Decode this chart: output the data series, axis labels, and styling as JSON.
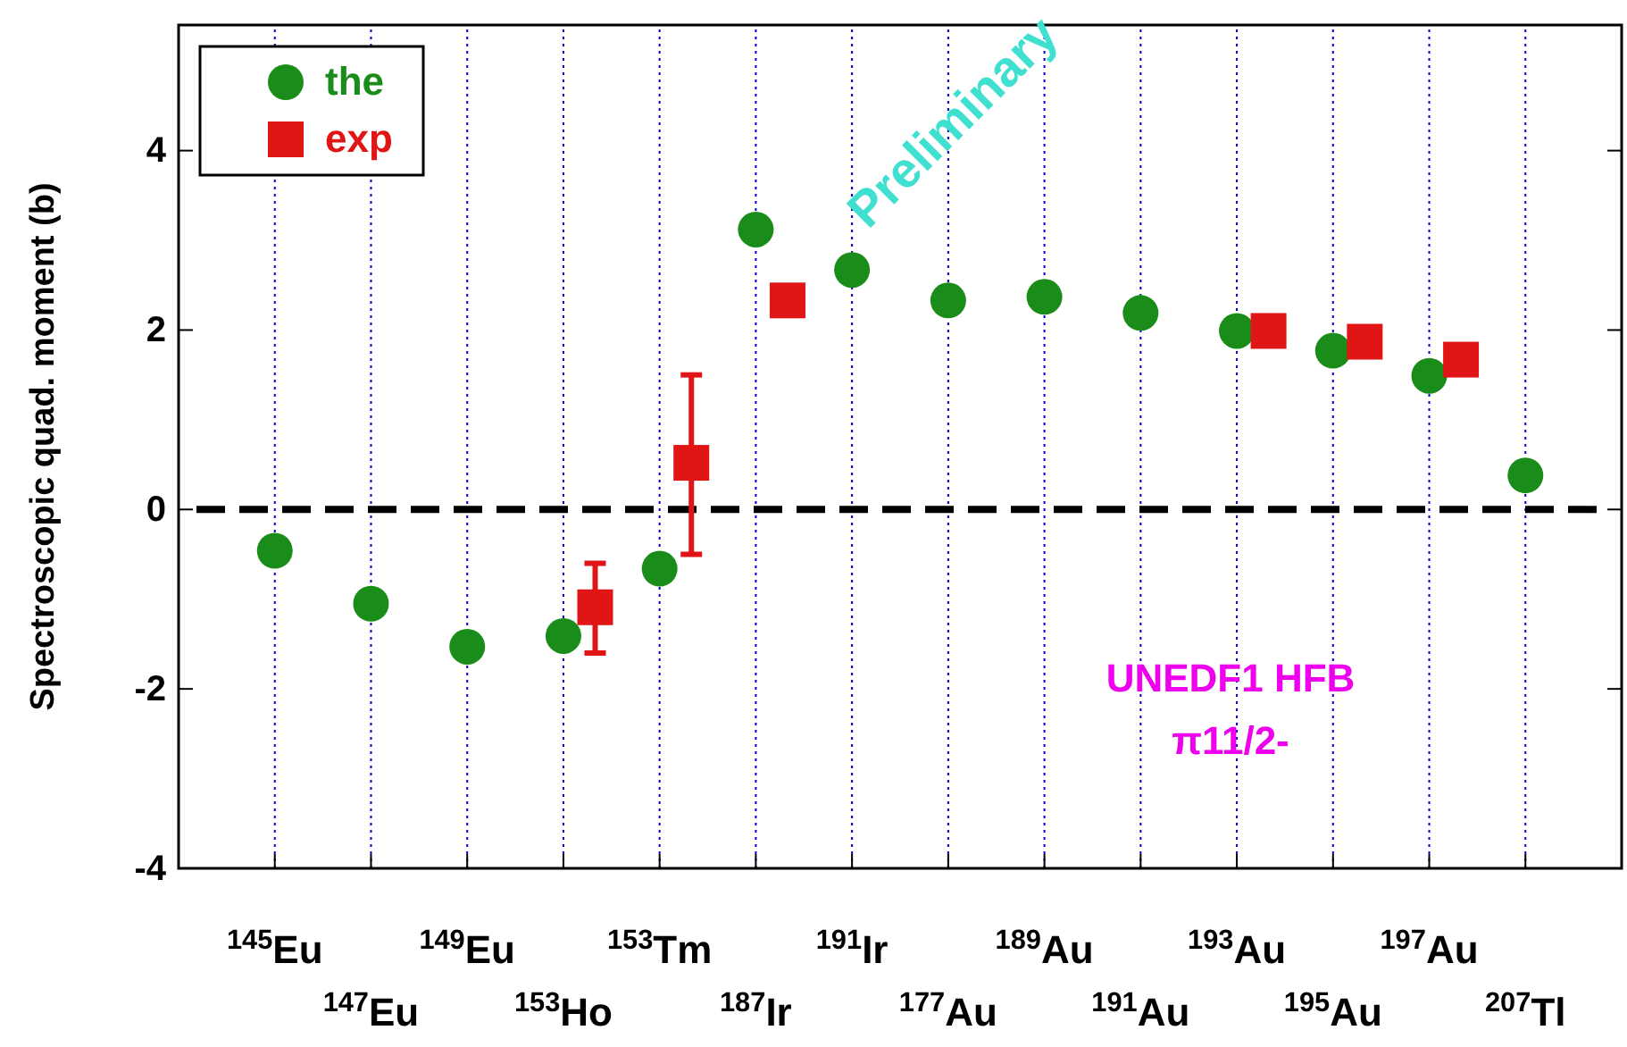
{
  "chart_data": {
    "type": "scatter",
    "ylabel": "Spectroscopic quad. moment (b)",
    "categories": [
      "$^{145}$Eu",
      "$^{147}$Eu",
      "$^{149}$Eu",
      "$^{153}$Ho",
      "$^{153}$Tm",
      "$^{187}$Ir",
      "$^{191}$Ir",
      "$^{177}$Au",
      "$^{189}$Au",
      "$^{191}$Au",
      "$^{193}$Au",
      "$^{195}$Au",
      "$^{197}$Au",
      "$^{207}$Tl"
    ],
    "series": [
      {
        "name": "the",
        "color": "#1a8c1a",
        "marker": "circle",
        "values": [
          -0.46,
          -1.05,
          -1.53,
          -1.41,
          -0.66,
          3.12,
          2.67,
          2.33,
          2.37,
          2.19,
          1.99,
          1.77,
          1.49,
          0.38
        ]
      },
      {
        "name": "exp",
        "color": "#e01515",
        "marker": "square",
        "x": [
          "$^{153}$Ho",
          "$^{153}$Tm",
          "$^{187}$Ir",
          "$^{193}$Au",
          "$^{195}$Au",
          "$^{197}$Au"
        ],
        "values": [
          -1.09,
          0.52,
          2.33,
          1.99,
          1.87,
          1.67
        ],
        "errors": [
          [
            -1.6,
            -0.6
          ],
          [
            -0.5,
            1.5
          ],
          null,
          null,
          null,
          null
        ]
      }
    ],
    "ylim": [
      -4,
      5.4
    ],
    "yticks": [
      -4,
      -2,
      0,
      2,
      4
    ],
    "grid": "x",
    "legend": "top left",
    "ref_lines": [
      {
        "axis": "y",
        "value": 0,
        "color": "#000000",
        "line_style": "dashed"
      }
    ],
    "annotations": [
      "UNEDF1 HFB",
      "π11/2-",
      "Preliminary"
    ]
  }
}
